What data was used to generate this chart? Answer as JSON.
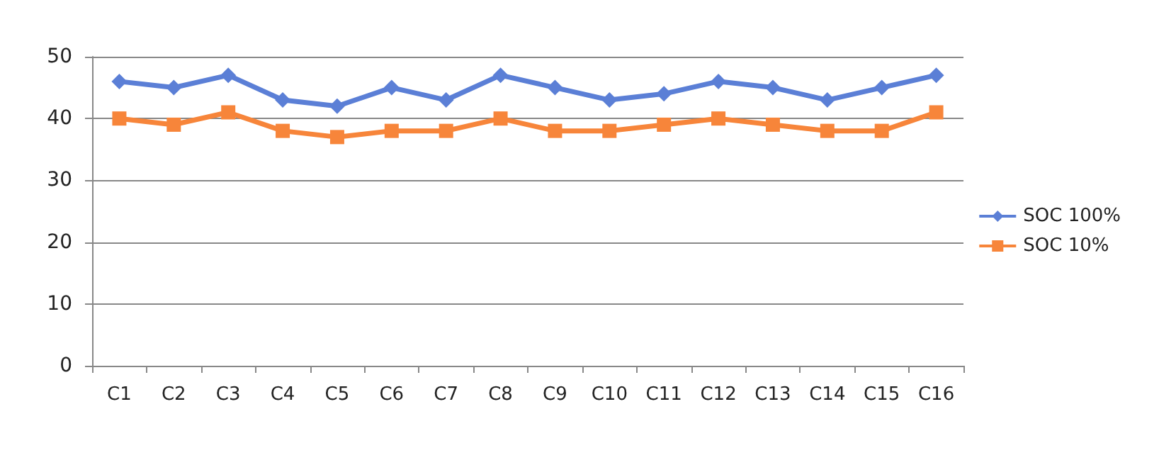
{
  "chart_data": {
    "type": "line",
    "categories": [
      "C1",
      "C2",
      "C3",
      "C4",
      "C5",
      "C6",
      "C7",
      "C8",
      "C9",
      "C10",
      "C11",
      "C12",
      "C13",
      "C14",
      "C15",
      "C16"
    ],
    "series": [
      {
        "name": "SOC 100%",
        "color": "#5b7fd6",
        "marker": "diamond",
        "values": [
          46,
          45,
          47,
          43,
          42,
          45,
          43,
          47,
          45,
          43,
          44,
          46,
          45,
          43,
          45,
          47
        ]
      },
      {
        "name": "SOC 10%",
        "color": "#f7853a",
        "marker": "square",
        "values": [
          40,
          39,
          41,
          38,
          37,
          38,
          38,
          40,
          38,
          38,
          39,
          40,
          39,
          38,
          38,
          41
        ]
      }
    ],
    "ylim": [
      0,
      50
    ],
    "yticks": [
      0,
      10,
      20,
      30,
      40,
      50
    ],
    "grid": "y",
    "legend": "right"
  }
}
